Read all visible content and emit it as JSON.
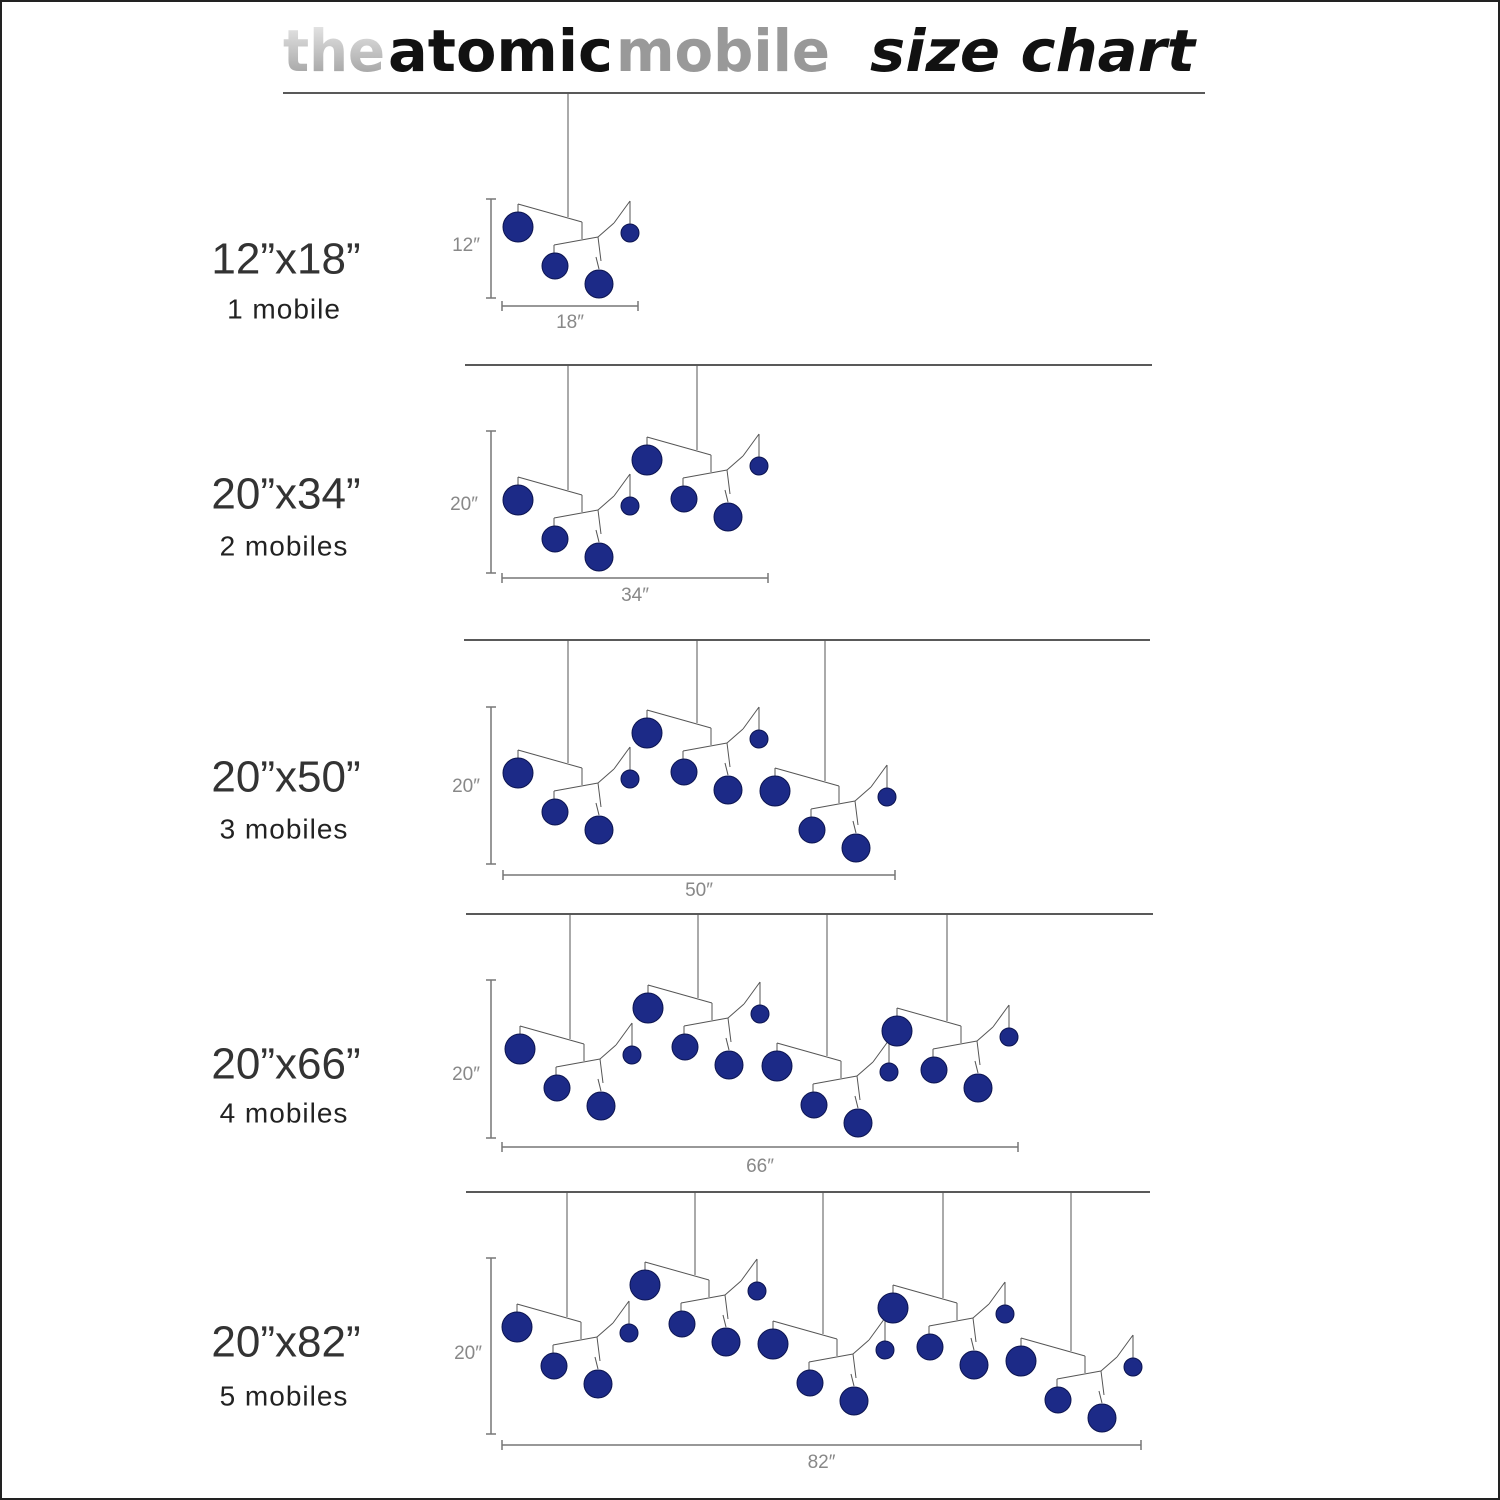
{
  "header": {
    "brand": [
      "the",
      "atomic",
      "mobile"
    ],
    "title": "size chart"
  },
  "rows": [
    {
      "size": "12”x18”",
      "count": "1 mobile",
      "height": "12″",
      "width": "18″"
    },
    {
      "size": "20”x34”",
      "count": "2 mobiles",
      "height": "20″",
      "width": "34″"
    },
    {
      "size": "20”x50”",
      "count": "3 mobiles",
      "height": "20″",
      "width": "50″"
    },
    {
      "size": "20”x66”",
      "count": "4 mobiles",
      "height": "20″",
      "width": "66″"
    },
    {
      "size": "20”x82”",
      "count": "5 mobiles",
      "height": "20″",
      "width": "82″"
    }
  ]
}
